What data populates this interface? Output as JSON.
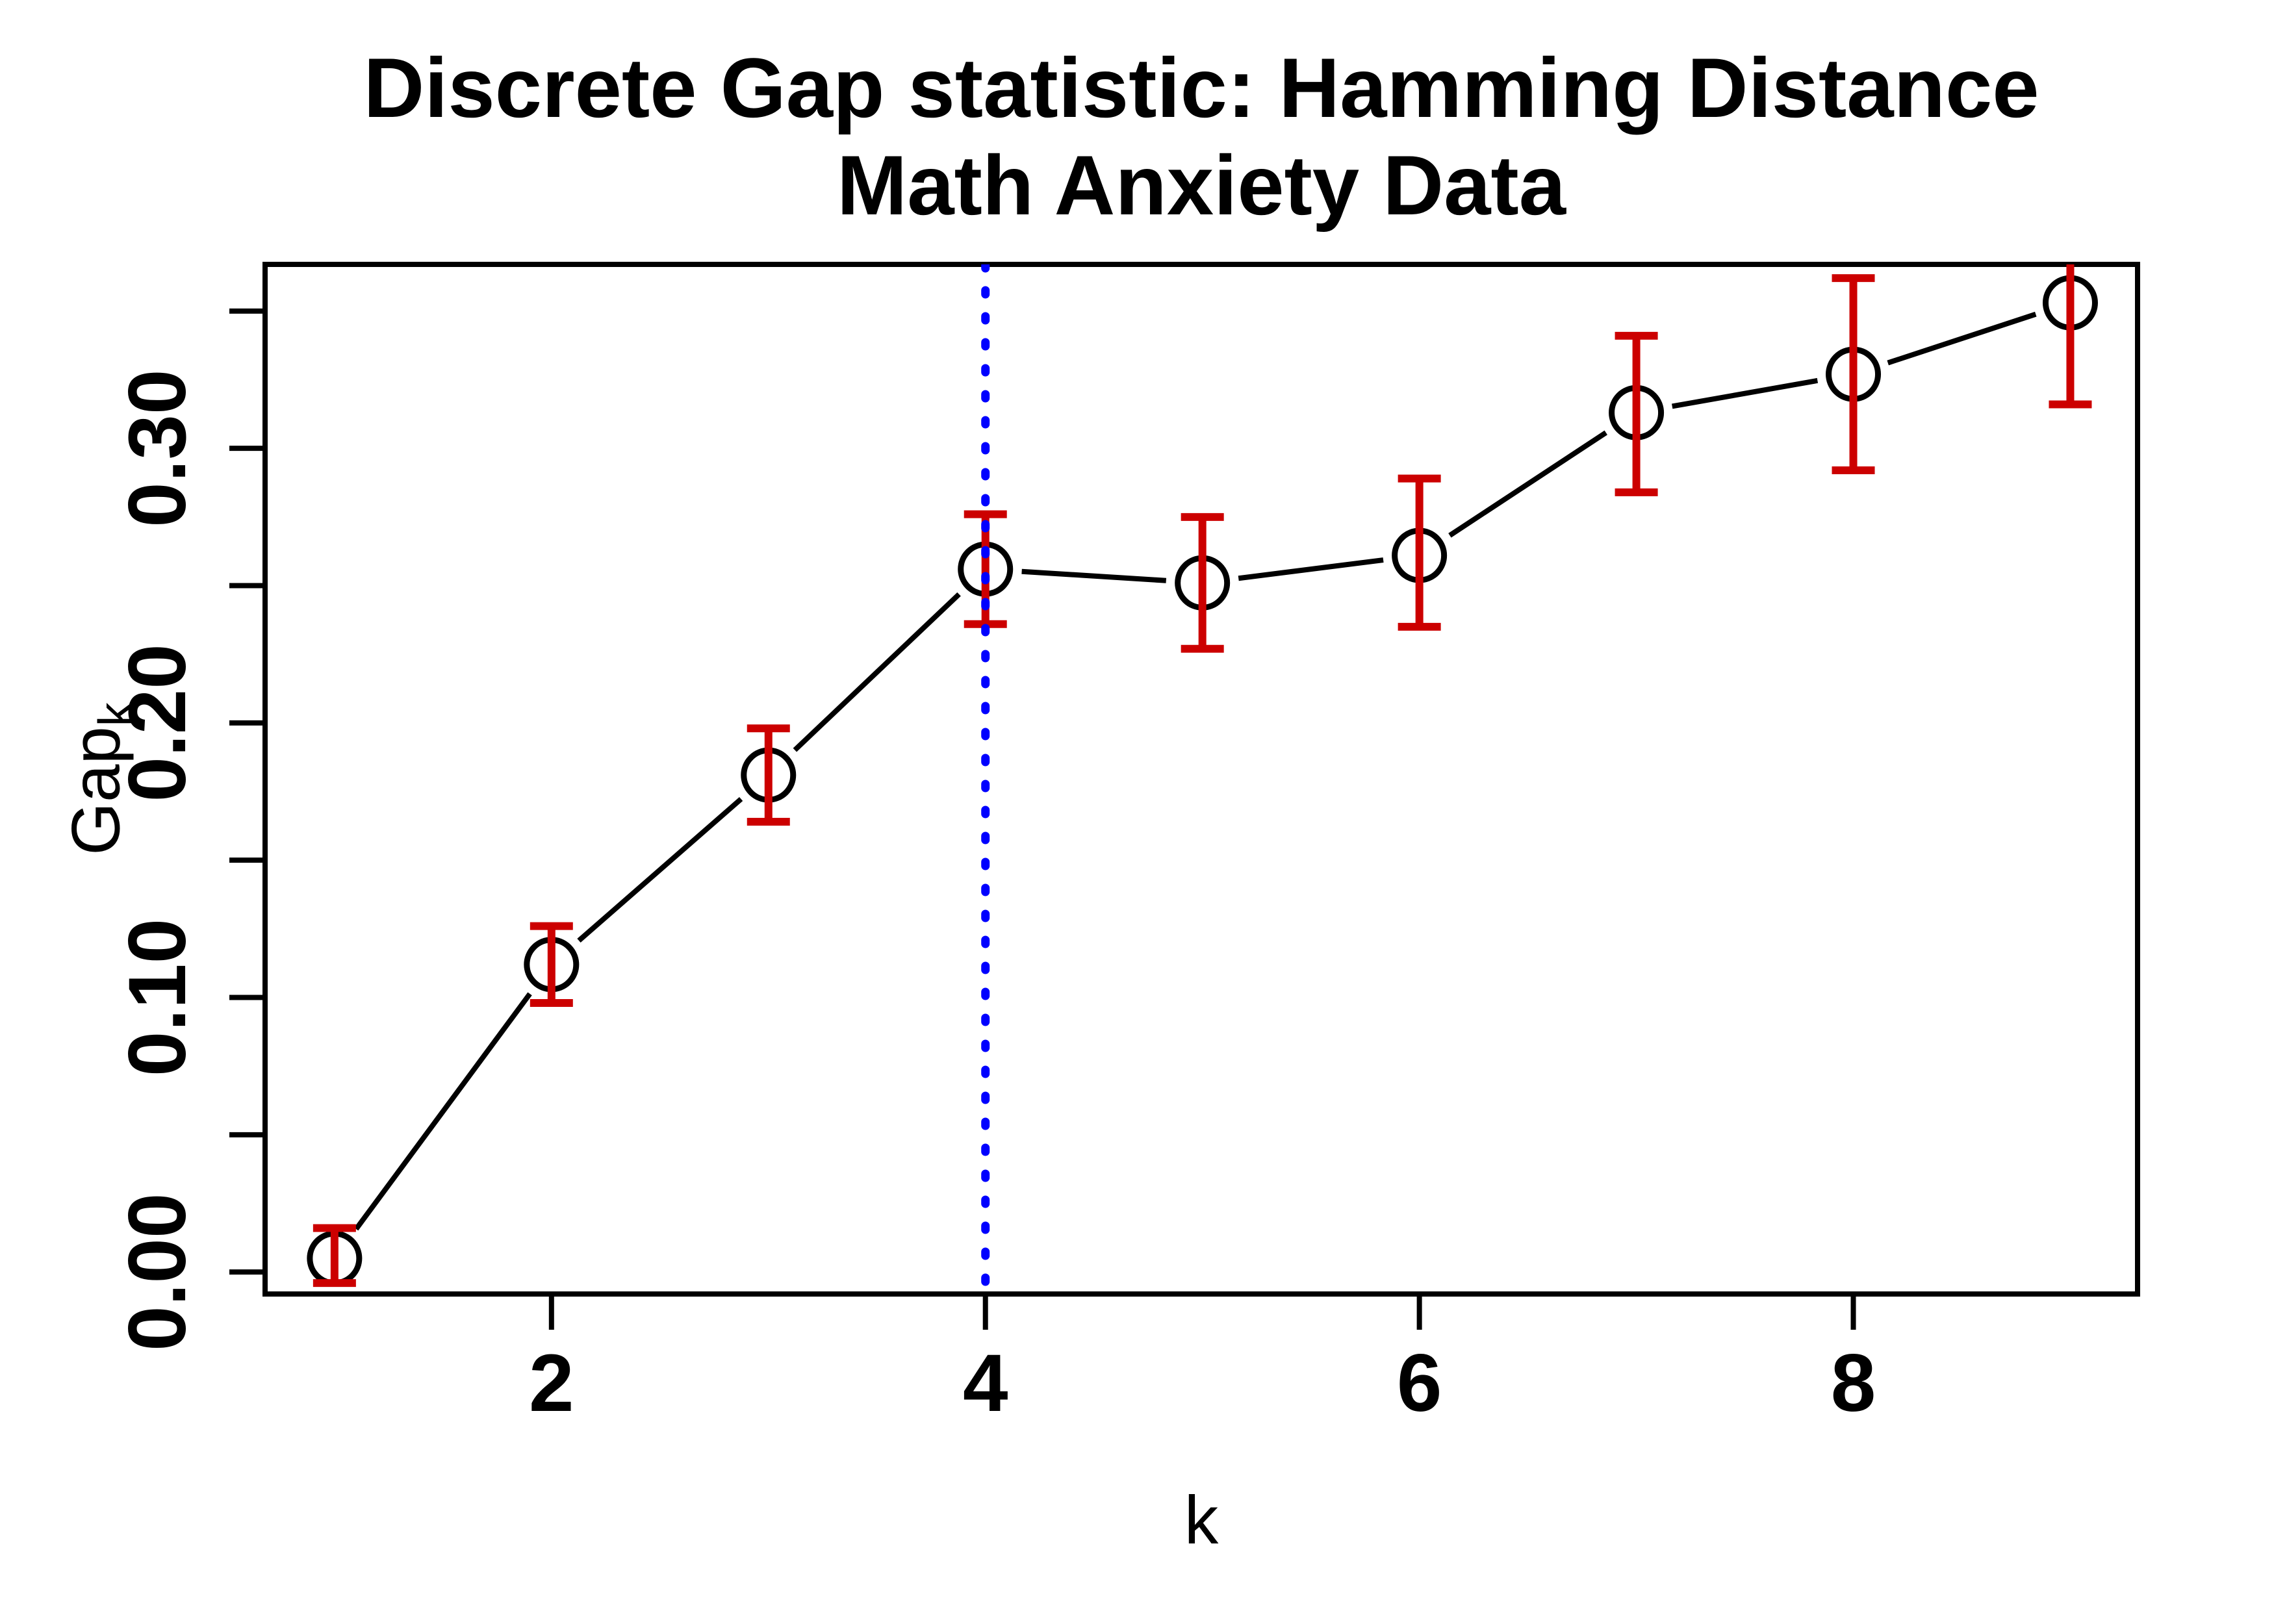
{
  "chart_data": {
    "type": "line",
    "title_line1": "Discrete Gap statistic: Hamming Distance",
    "title_line2": "Math Anxiety Data",
    "xlabel": "k",
    "ylabel_main": "Gap",
    "ylabel_sub": "k",
    "x": [
      1,
      2,
      3,
      4,
      5,
      6,
      7,
      8,
      9
    ],
    "values": [
      0.005,
      0.112,
      0.181,
      0.256,
      0.251,
      0.261,
      0.313,
      0.327,
      0.353
    ],
    "error_low": [
      -0.004,
      0.098,
      0.164,
      0.236,
      0.227,
      0.235,
      0.284,
      0.292,
      0.316
    ],
    "error_high": [
      0.016,
      0.126,
      0.198,
      0.276,
      0.275,
      0.289,
      0.341,
      0.362,
      0.39
    ],
    "vline_x": 4,
    "xlim": [
      0.68,
      9.31
    ],
    "ylim": [
      -0.008,
      0.367
    ],
    "x_ticks": [
      {
        "v": 2,
        "label": "2"
      },
      {
        "v": 4,
        "label": "4"
      },
      {
        "v": 6,
        "label": "6"
      },
      {
        "v": 8,
        "label": "8"
      }
    ],
    "y_ticks": [
      {
        "v": 0.0,
        "label": "0.00"
      },
      {
        "v": 0.05,
        "label": ""
      },
      {
        "v": 0.1,
        "label": "0.10"
      },
      {
        "v": 0.15,
        "label": ""
      },
      {
        "v": 0.2,
        "label": "0.20"
      },
      {
        "v": 0.25,
        "label": ""
      },
      {
        "v": 0.3,
        "label": "0.30"
      },
      {
        "v": 0.35,
        "label": ""
      }
    ],
    "grid": false,
    "legend": null,
    "marker": "open-circle",
    "line_style": "points-with-segments",
    "vline_style": "dotted",
    "colors": {
      "series": "#000000",
      "error_bars": "#CC0000",
      "vline": "#0000FF",
      "text": "#000000",
      "background": "#FFFFFF"
    }
  }
}
